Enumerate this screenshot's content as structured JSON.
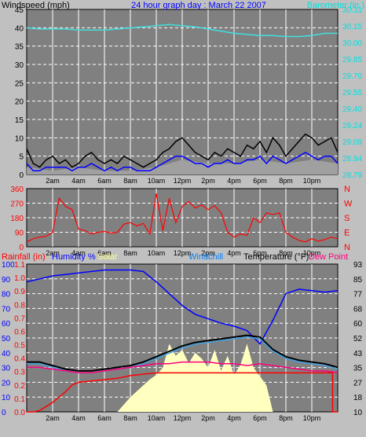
{
  "chart_data": [
    {
      "type": "line",
      "title": "24 hour graph day : March 22 2007",
      "ylabel_left": "Windspeed (mph)",
      "ylabel_right": "Barometer (in.)",
      "x_ticks": [
        "2am",
        "4am",
        "6am",
        "8am",
        "10am",
        "12pm",
        "2pm",
        "4pm",
        "6pm",
        "8pm",
        "10pm"
      ],
      "x_range_hours": [
        0,
        24
      ],
      "ylim_left": [
        0,
        45
      ],
      "y_ticks_left": [
        0,
        5,
        10,
        15,
        20,
        25,
        30,
        35,
        40,
        45
      ],
      "ylim_right": [
        28.79,
        30.31
      ],
      "y_ticks_right": [
        "28.79",
        "28.94",
        "29.09",
        "29.24",
        "29.40",
        "29.55",
        "29.70",
        "29.85",
        "30.00",
        "30.15",
        "30.31"
      ],
      "grid": true,
      "series": [
        {
          "name": "Barometer",
          "axis": "right",
          "color": "#40e0e0",
          "x": [
            0,
            1,
            2,
            3,
            4,
            5,
            6,
            7,
            8,
            9,
            10,
            11,
            12,
            13,
            14,
            15,
            16,
            17,
            18,
            19,
            20,
            21,
            22,
            23,
            24
          ],
          "values": [
            30.14,
            30.13,
            30.13,
            30.13,
            30.12,
            30.12,
            30.12,
            30.13,
            30.14,
            30.15,
            30.16,
            30.17,
            30.16,
            30.15,
            30.13,
            30.11,
            30.09,
            30.08,
            30.07,
            30.07,
            30.06,
            30.06,
            30.07,
            30.09,
            30.09
          ]
        },
        {
          "name": "Wind gust",
          "axis": "left",
          "color": "#000000",
          "x": [
            0,
            0.5,
            1,
            1.5,
            2,
            2.5,
            3,
            3.5,
            4,
            4.5,
            5,
            5.5,
            6,
            6.5,
            7,
            7.5,
            8,
            8.5,
            9,
            9.5,
            10,
            10.5,
            11,
            11.5,
            12,
            12.5,
            13,
            13.5,
            14,
            14.5,
            15,
            15.5,
            16,
            16.5,
            17,
            17.5,
            18,
            18.5,
            19,
            19.5,
            20,
            20.5,
            21,
            21.5,
            22,
            22.5,
            23,
            23.5,
            24
          ],
          "values": [
            7,
            3,
            2,
            4,
            5,
            3,
            4,
            2,
            3,
            5,
            6,
            4,
            3,
            4,
            3,
            5,
            4,
            3,
            2,
            3,
            4,
            6,
            7,
            9,
            10,
            8,
            6,
            5,
            4,
            6,
            5,
            7,
            6,
            5,
            8,
            7,
            9,
            6,
            10,
            8,
            5,
            7,
            9,
            11,
            10,
            8,
            9,
            10,
            6
          ]
        },
        {
          "name": "Wind speed",
          "axis": "left",
          "color": "#0000ff",
          "x": [
            0,
            0.5,
            1,
            1.5,
            2,
            2.5,
            3,
            3.5,
            4,
            4.5,
            5,
            5.5,
            6,
            6.5,
            7,
            7.5,
            8,
            8.5,
            9,
            9.5,
            10,
            10.5,
            11,
            11.5,
            12,
            12.5,
            13,
            13.5,
            14,
            14.5,
            15,
            15.5,
            16,
            16.5,
            17,
            17.5,
            18,
            18.5,
            19,
            19.5,
            20,
            20.5,
            21,
            21.5,
            22,
            22.5,
            23,
            23.5,
            24
          ],
          "values": [
            3,
            1,
            1,
            2,
            2,
            2,
            2,
            1,
            2,
            2,
            3,
            2,
            1,
            2,
            1,
            2,
            2,
            1,
            1,
            1,
            2,
            3,
            4,
            5,
            5,
            4,
            3,
            3,
            2,
            3,
            3,
            4,
            3,
            3,
            4,
            4,
            5,
            3,
            5,
            4,
            3,
            4,
            5,
            6,
            5,
            4,
            5,
            5,
            3
          ]
        },
        {
          "name": "Average wind",
          "axis": "left",
          "color": "#808080",
          "x": [
            0,
            2,
            4,
            6,
            8,
            10,
            12,
            14,
            16,
            18,
            20,
            22,
            24
          ],
          "values": [
            2,
            1,
            2,
            1,
            1,
            2,
            4,
            3,
            3,
            4,
            3,
            4,
            3
          ]
        }
      ]
    },
    {
      "type": "line",
      "ylim": [
        0,
        360
      ],
      "y_ticks_left": [
        0,
        90,
        180,
        270,
        360
      ],
      "y_ticks_right": [
        "N",
        "E",
        "S",
        "W",
        "N"
      ],
      "x_ticks": [
        "2am",
        "4am",
        "6am",
        "8am",
        "10am",
        "12pm",
        "2pm",
        "4pm",
        "6pm",
        "8pm",
        "10pm"
      ],
      "grid": true,
      "series": [
        {
          "name": "Wind direction",
          "color": "#ff0000",
          "x": [
            0,
            0.5,
            1,
            1.5,
            2,
            2.5,
            3,
            3.5,
            4,
            4.5,
            5,
            5.5,
            6,
            6.5,
            7,
            7.5,
            8,
            8.5,
            9,
            9.5,
            10,
            10.5,
            11,
            11.5,
            12,
            12.5,
            13,
            13.5,
            14,
            14.5,
            15,
            15.5,
            16,
            16.5,
            17,
            17.5,
            18,
            18.5,
            19,
            19.5,
            20,
            20.5,
            21,
            21.5,
            22,
            22.5,
            23,
            23.5,
            24
          ],
          "values": [
            30,
            50,
            60,
            65,
            90,
            300,
            250,
            230,
            110,
            100,
            80,
            90,
            95,
            85,
            90,
            140,
            150,
            130,
            145,
            80,
            330,
            100,
            300,
            150,
            250,
            280,
            240,
            260,
            230,
            255,
            210,
            90,
            60,
            80,
            70,
            180,
            150,
            210,
            200,
            210,
            90,
            60,
            40,
            30,
            50,
            35,
            45,
            60,
            50
          ]
        }
      ]
    },
    {
      "type": "line",
      "title_items": [
        "Rainfall (in)",
        "Humidity %",
        "Solar",
        "Windchill",
        "Temperature (°F)",
        "Dew Point"
      ],
      "ylim_rain": [
        0,
        1.1
      ],
      "y_ticks_rain": [
        "0.0",
        "0.1",
        "0.2",
        "0.3",
        "0.4",
        "0.5",
        "0.6",
        "0.7",
        "0.8",
        "0.9",
        "1.0",
        "1.1"
      ],
      "ylim_humidity": [
        0,
        100
      ],
      "y_ticks_humidity": [
        0,
        10,
        20,
        30,
        40,
        50,
        60,
        70,
        80,
        90,
        100
      ],
      "ylim_temp": [
        10,
        93
      ],
      "y_ticks_temp": [
        10,
        18,
        27,
        35,
        43,
        52,
        60,
        68,
        77,
        85,
        93
      ],
      "x_ticks": [
        "2am",
        "4am",
        "6am",
        "8am",
        "10am",
        "12pm",
        "2pm",
        "4pm",
        "6pm",
        "8pm",
        "10pm"
      ],
      "grid": true,
      "series": [
        {
          "name": "Humidity %",
          "axis": "humidity",
          "color": "#0000ff",
          "x": [
            0,
            1,
            2,
            3,
            4,
            5,
            6,
            7,
            8,
            9,
            10,
            11,
            12,
            13,
            14,
            15,
            16,
            17,
            18,
            19,
            20,
            21,
            22,
            23,
            24
          ],
          "values": [
            88,
            90,
            92,
            93,
            94,
            95,
            96,
            96,
            96,
            95,
            88,
            80,
            72,
            66,
            63,
            60,
            58,
            55,
            46,
            62,
            80,
            83,
            82,
            81,
            82
          ]
        },
        {
          "name": "Temperature (°F)",
          "axis": "temp",
          "color": "#000000",
          "x": [
            0,
            1,
            2,
            3,
            4,
            5,
            6,
            7,
            8,
            9,
            10,
            11,
            12,
            13,
            14,
            15,
            16,
            17,
            18,
            19,
            20,
            21,
            22,
            23,
            24
          ],
          "values": [
            38,
            38,
            36,
            34,
            33,
            33,
            34,
            35,
            36,
            38,
            41,
            44,
            47,
            49,
            50,
            51,
            52,
            53,
            52,
            45,
            41,
            39,
            38,
            37,
            35
          ]
        },
        {
          "name": "Windchill",
          "axis": "temp",
          "color": "#40a0e0",
          "x": [
            0,
            1,
            2,
            3,
            4,
            5,
            6,
            7,
            8,
            9,
            10,
            11,
            12,
            13,
            14,
            15,
            16,
            17,
            18,
            19,
            20,
            21,
            22,
            23,
            24
          ],
          "values": [
            37,
            37,
            35,
            33,
            32,
            32,
            33,
            34,
            35,
            37,
            40,
            43,
            46,
            48,
            49,
            50,
            51,
            52,
            51,
            44,
            40,
            38,
            37,
            36,
            34
          ]
        },
        {
          "name": "Dew Point",
          "axis": "temp",
          "color": "#ff0080",
          "x": [
            0,
            1,
            2,
            3,
            4,
            5,
            6,
            7,
            8,
            9,
            10,
            11,
            12,
            13,
            14,
            15,
            16,
            17,
            18,
            19,
            20,
            21,
            22,
            23,
            24
          ],
          "values": [
            35,
            35,
            34,
            33,
            32,
            32,
            33,
            34,
            35,
            36,
            37,
            37,
            38,
            38,
            38,
            37,
            37,
            36,
            37,
            36,
            35,
            34,
            33,
            33,
            32
          ]
        },
        {
          "name": "Rainfall (in)",
          "axis": "rain",
          "color": "#ff0000",
          "x": [
            0,
            0.5,
            1,
            1.5,
            2,
            2.5,
            3,
            3.5,
            4,
            5,
            6,
            7,
            8,
            9,
            10,
            12,
            14,
            16,
            18,
            20,
            22,
            23.6,
            23.6,
            24
          ],
          "values": [
            0,
            0,
            0.01,
            0.04,
            0.07,
            0.11,
            0.15,
            0.2,
            0.22,
            0.23,
            0.24,
            0.25,
            0.27,
            0.28,
            0.29,
            0.29,
            0.29,
            0.29,
            0.29,
            0.29,
            0.29,
            0.29,
            0,
            0
          ]
        },
        {
          "name": "Solar",
          "axis": "humidity",
          "color": "#ffffc0",
          "x": [
            0,
            7,
            7.5,
            8,
            8.5,
            9,
            9.5,
            10,
            10.5,
            11,
            11.5,
            12,
            12.5,
            13,
            13.5,
            14,
            14.5,
            15,
            15.5,
            16,
            16.5,
            17,
            17.5,
            18,
            18.5,
            19,
            24
          ],
          "values": [
            0,
            0,
            5,
            10,
            14,
            18,
            22,
            25,
            30,
            46,
            38,
            42,
            33,
            40,
            36,
            30,
            42,
            28,
            38,
            25,
            32,
            46,
            30,
            24,
            18,
            0,
            0
          ]
        }
      ]
    }
  ],
  "colors": {
    "background": "#c0c0c0",
    "plot_area": "#808080",
    "grid": "#ffffff",
    "windspeed_label": "#000000",
    "title": "#0000ff",
    "barometer_label": "#00e0e0",
    "rain_label": "#ff0000",
    "humidity_label": "#0000ff",
    "solar_label": "#ffff80",
    "windchill_label": "#0080ff",
    "temp_label": "#000000",
    "dew_label": "#ff0080",
    "direction_line": "#ff0000",
    "direction_ticks": "#ff0000"
  }
}
